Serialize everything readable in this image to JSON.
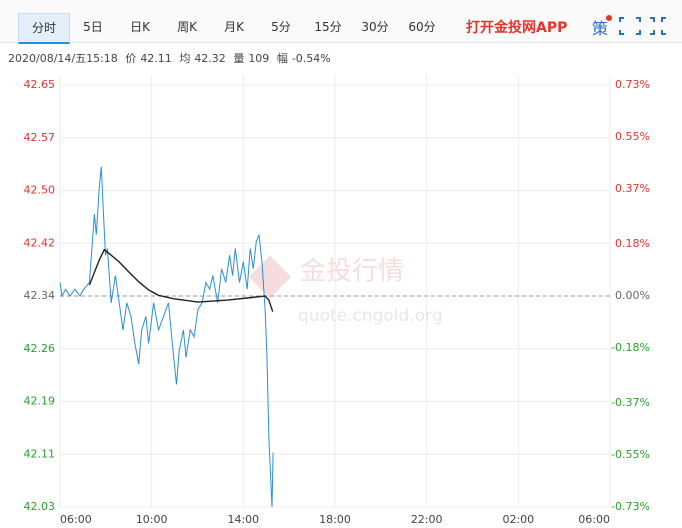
{
  "tabs": [
    "分时",
    "5日",
    "日K",
    "周K",
    "月K",
    "5分",
    "15分",
    "30分",
    "60分"
  ],
  "app_link": "打开金投网APP",
  "strategy": "策",
  "info": {
    "time": "2020/08/14/五15:18",
    "price": 42.11,
    "avg": 42.32,
    "volume_label": "量",
    "volume": 109,
    "change_label": "幅",
    "change": "-0.54%"
  },
  "watermark": {
    "brand": "金投行情",
    "url": "quote.cngold.org"
  },
  "chart_data": {
    "type": "line",
    "series": [
      {
        "name": "价",
        "color": "#2b8fd8",
        "x": [
          "06:00",
          "06:05",
          "06:15",
          "06:26",
          "06:39",
          "06:52",
          "07:02",
          "07:17",
          "07:30",
          "07:35",
          "07:43",
          "07:48",
          "07:54",
          "07:59",
          "08:04",
          "08:14",
          "08:25",
          "08:35",
          "08:45",
          "08:55",
          "09:06",
          "09:16",
          "09:26",
          "09:34",
          "09:45",
          "09:52",
          "10:05",
          "10:18",
          "10:31",
          "10:44",
          "10:54",
          "11:05",
          "11:12",
          "11:23",
          "11:30",
          "11:41",
          "11:51",
          "12:01",
          "12:12",
          "12:22",
          "12:32",
          "12:40",
          "12:53",
          "13:03",
          "13:14",
          "13:24",
          "13:32",
          "13:39",
          "13:50",
          "14:00",
          "14:10",
          "14:18",
          "14:26",
          "14:34",
          "14:41",
          "14:49",
          "14:57",
          "15:02",
          "15:07",
          "15:15",
          "15:18"
        ],
        "values": [
          42.36,
          42.34,
          42.35,
          42.34,
          42.35,
          42.34,
          42.35,
          42.36,
          42.46,
          42.43,
          42.5,
          42.53,
          42.46,
          42.4,
          42.41,
          42.33,
          42.37,
          42.33,
          42.29,
          42.33,
          42.31,
          42.27,
          42.24,
          42.29,
          42.31,
          42.27,
          42.33,
          42.29,
          42.31,
          42.33,
          42.27,
          42.21,
          42.26,
          42.29,
          42.25,
          42.29,
          42.28,
          42.32,
          42.33,
          42.36,
          42.35,
          42.37,
          42.33,
          42.38,
          42.36,
          42.4,
          42.37,
          42.41,
          42.36,
          42.39,
          42.35,
          42.41,
          42.38,
          42.42,
          42.43,
          42.39,
          42.32,
          42.25,
          42.13,
          42.03,
          42.11
        ]
      },
      {
        "name": "均",
        "color": "#222222",
        "x": [
          "07:17",
          "07:43",
          "07:56",
          "08:14",
          "08:35",
          "09:01",
          "09:26",
          "09:52",
          "10:18",
          "10:57",
          "12:01",
          "13:19",
          "14:10",
          "14:57",
          "15:07",
          "15:17"
        ],
        "values": [
          42.356,
          42.393,
          42.408,
          42.4,
          42.39,
          42.375,
          42.361,
          42.349,
          42.341,
          42.336,
          42.331,
          42.334,
          42.337,
          42.34,
          42.334,
          42.317
        ]
      }
    ],
    "xticks": [
      "06:00",
      "10:00",
      "14:00",
      "18:00",
      "22:00",
      "02:00",
      "06:00"
    ],
    "ylim": [
      42.03,
      42.65
    ],
    "yticks": [
      {
        "value": 42.65,
        "label": "42.65"
      },
      {
        "value": 42.5725,
        "label": "42.57"
      },
      {
        "value": 42.495,
        "label": "42.50"
      },
      {
        "value": 42.4175,
        "label": "42.42"
      },
      {
        "value": 42.34,
        "label": "42.34"
      },
      {
        "value": 42.2625,
        "label": "42.26"
      },
      {
        "value": 42.185,
        "label": "42.19"
      },
      {
        "value": 42.1075,
        "label": "42.11"
      },
      {
        "value": 42.03,
        "label": "42.03"
      }
    ],
    "y2lim": [
      -0.73,
      0.73
    ],
    "y2ticks": [
      {
        "value": 0.73,
        "label": "0.73%"
      },
      {
        "value": 0.55,
        "label": "0.55%"
      },
      {
        "value": 0.37,
        "label": "0.37%"
      },
      {
        "value": 0.18,
        "label": "0.18%"
      },
      {
        "value": 0,
        "label": "0.00%"
      },
      {
        "value": -0.18,
        "label": "-0.18%"
      },
      {
        "value": -0.37,
        "label": "-0.37%"
      },
      {
        "value": -0.55,
        "label": "-0.55%"
      },
      {
        "value": -0.73,
        "label": "-0.73%"
      }
    ],
    "reference_line": 42.34,
    "grid": true,
    "up_color": "#e8322c",
    "down_color": "#2aa12a"
  }
}
